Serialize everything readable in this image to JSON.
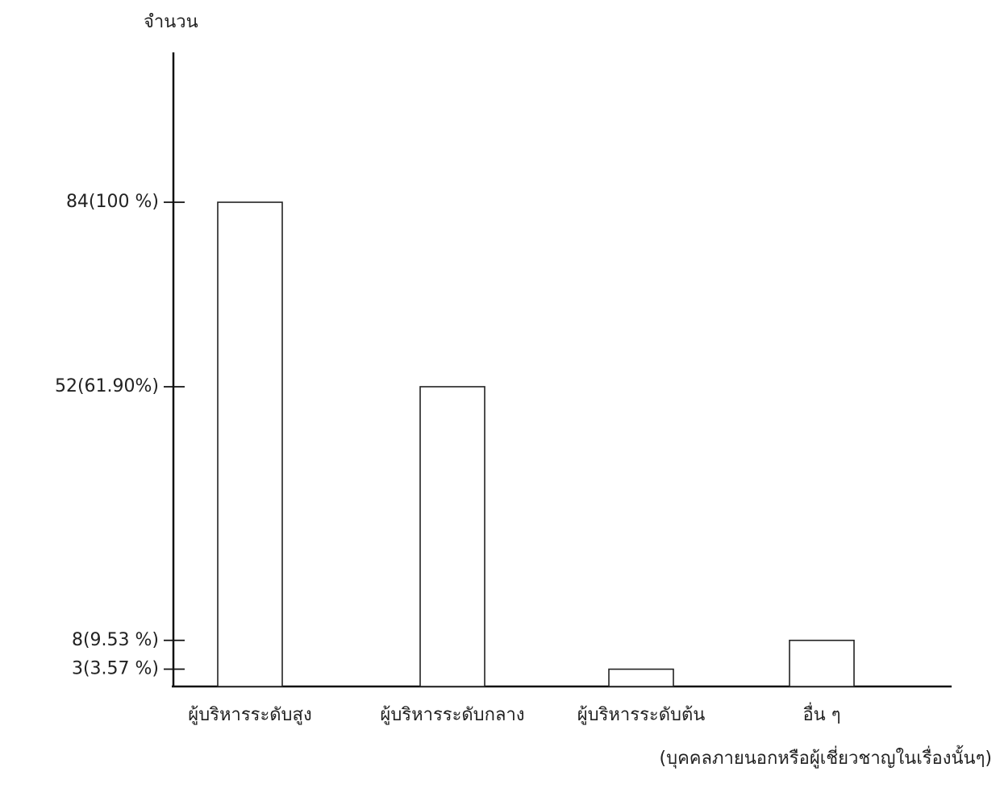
{
  "chart_data": {
    "type": "bar",
    "y_label": "จำนวน",
    "categories": [
      "ผู้บริหารระดับสูง",
      "ผู้บริหารระดับกลาง",
      "ผู้บริหารระดับต้น",
      "อื่น ๆ"
    ],
    "category_note": "(บุคคลภายนอกหรือผู้เชี่ยวชาญในเรื่องนั้นๆ)",
    "values": [
      84,
      52,
      3,
      8
    ],
    "color": "#ffffff",
    "ylim": [
      0,
      110
    ],
    "yticks": [
      {
        "value": 84,
        "label": "84(100 %)"
      },
      {
        "value": 52,
        "label": "52(61.90%)"
      },
      {
        "value": 8,
        "label": "8(9.53 %)"
      },
      {
        "value": 3,
        "label": "3(3.57 %)"
      }
    ],
    "grid": false
  }
}
